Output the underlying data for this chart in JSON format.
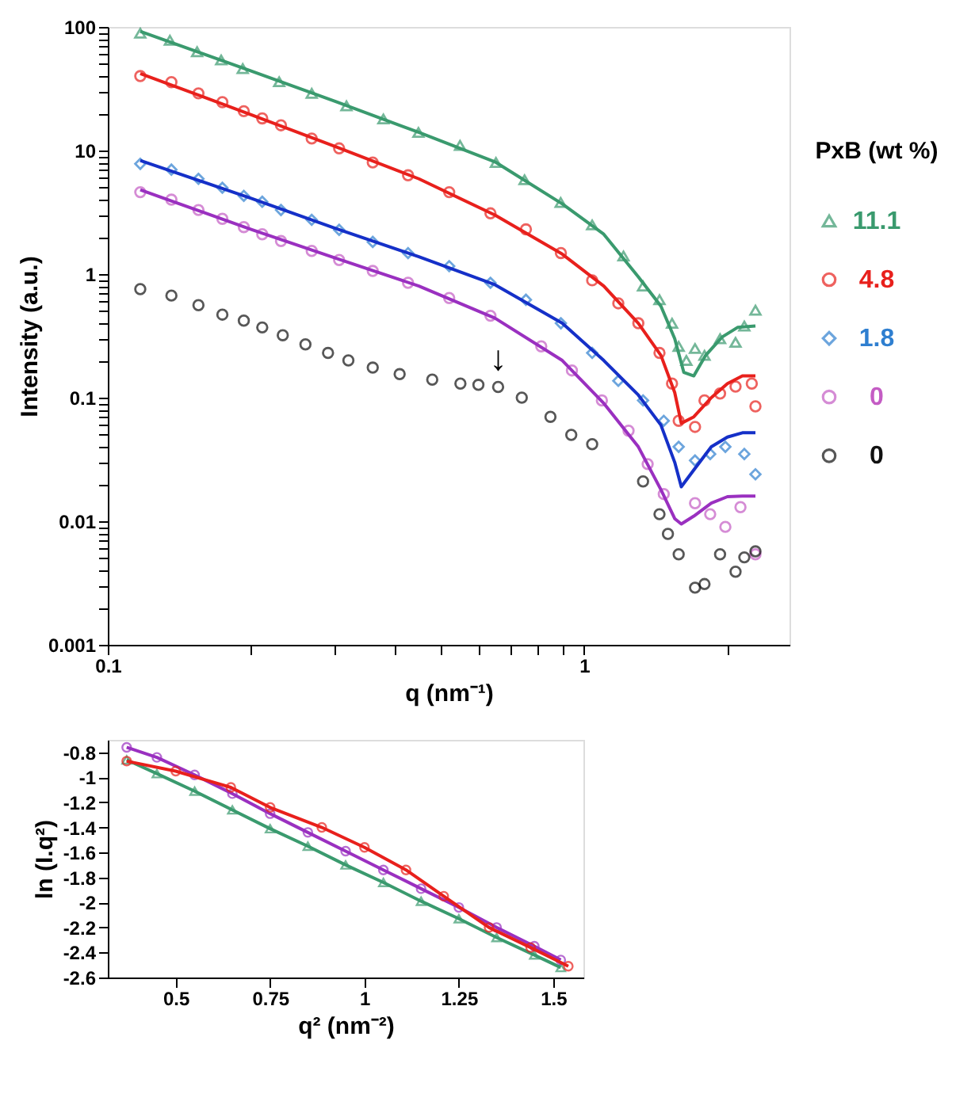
{
  "chart_data": [
    {
      "type": "scatter",
      "xlabel": "q (nm⁻¹)",
      "ylabel": "Intensity (a.u.)",
      "legend_title": "PxB (wt %)",
      "legend": "right",
      "log": "xy",
      "grid": false,
      "xlim": [
        0.1,
        2.7
      ],
      "xticks": [
        0.1,
        {
          "value": 0.2,
          "label": null
        },
        {
          "value": 0.3,
          "label": null
        },
        {
          "value": 0.4,
          "label": null
        },
        {
          "value": 0.5,
          "label": null
        },
        {
          "value": 0.6,
          "label": null
        },
        {
          "value": 0.7,
          "label": null
        },
        {
          "value": 0.8,
          "label": null
        },
        {
          "value": 0.9,
          "label": null
        },
        1,
        {
          "value": 2,
          "label": null
        }
      ],
      "ylim": [
        0.001,
        100
      ],
      "yticks": [
        0.001,
        {
          "value": 0.002,
          "label": null
        },
        {
          "value": 0.003,
          "label": null
        },
        {
          "value": 0.004,
          "label": null
        },
        {
          "value": 0.005,
          "label": null
        },
        {
          "value": 0.006,
          "label": null
        },
        {
          "value": 0.007,
          "label": null
        },
        {
          "value": 0.008,
          "label": null
        },
        {
          "value": 0.009,
          "label": null
        },
        0.01,
        {
          "value": 0.02,
          "label": null
        },
        {
          "value": 0.03,
          "label": null
        },
        {
          "value": 0.04,
          "label": null
        },
        {
          "value": 0.05,
          "label": null
        },
        {
          "value": 0.06,
          "label": null
        },
        {
          "value": 0.07,
          "label": null
        },
        {
          "value": 0.08,
          "label": null
        },
        {
          "value": 0.09,
          "label": null
        },
        0.1,
        {
          "value": 0.2,
          "label": null
        },
        {
          "value": 0.3,
          "label": null
        },
        {
          "value": 0.4,
          "label": null
        },
        {
          "value": 0.5,
          "label": null
        },
        {
          "value": 0.6,
          "label": null
        },
        {
          "value": 0.7,
          "label": null
        },
        {
          "value": 0.8,
          "label": null
        },
        {
          "value": 0.9,
          "label": null
        },
        1,
        {
          "value": 2,
          "label": null
        },
        {
          "value": 3,
          "label": null
        },
        {
          "value": 4,
          "label": null
        },
        {
          "value": 5,
          "label": null
        },
        {
          "value": 6,
          "label": null
        },
        {
          "value": 7,
          "label": null
        },
        {
          "value": 8,
          "label": null
        },
        {
          "value": 9,
          "label": null
        },
        10,
        {
          "value": 20,
          "label": null
        },
        {
          "value": 30,
          "label": null
        },
        {
          "value": 40,
          "label": null
        },
        {
          "value": 50,
          "label": null
        },
        {
          "value": 60,
          "label": null
        },
        {
          "value": 70,
          "label": null
        },
        {
          "value": 80,
          "label": null
        },
        {
          "value": 90,
          "label": null
        },
        100
      ],
      "annotations": [
        {
          "text": "↓",
          "x": 0.66,
          "y": 0.122
        }
      ],
      "series": [
        {
          "name": "11.1",
          "marker": "triangle",
          "color": "#3a9a6e",
          "x": [
            0.117,
            0.135,
            0.154,
            0.173,
            0.192,
            0.229,
            0.268,
            0.317,
            0.379,
            0.449,
            0.549,
            0.653,
            0.75,
            0.893,
            1.04,
            1.21,
            1.33,
            1.44,
            1.53,
            1.58,
            1.64,
            1.71,
            1.79,
            1.93,
            2.08,
            2.17,
            2.29
          ],
          "values": [
            89,
            78,
            63,
            54,
            46,
            36,
            29,
            23,
            18,
            14,
            11,
            8.0,
            5.8,
            3.8,
            2.5,
            1.4,
            0.8,
            0.62,
            0.4,
            0.26,
            0.2,
            0.25,
            0.22,
            0.3,
            0.28,
            0.38,
            0.51
          ]
        },
        {
          "type": "line",
          "marker": "none",
          "color": "#3a9a6e",
          "x": [
            0.117,
            0.2,
            0.3,
            0.45,
            0.65,
            0.9,
            1.1,
            1.3,
            1.45,
            1.55,
            1.62,
            1.7,
            1.8,
            1.95,
            2.1,
            2.29
          ],
          "values": [
            92,
            44,
            25,
            14,
            8.1,
            3.7,
            2.1,
            0.95,
            0.55,
            0.3,
            0.16,
            0.15,
            0.22,
            0.31,
            0.37,
            0.38
          ]
        },
        {
          "name": "4.8",
          "marker": "circle",
          "color": "#e8201c",
          "x": [
            0.117,
            0.136,
            0.155,
            0.174,
            0.193,
            0.211,
            0.231,
            0.268,
            0.306,
            0.36,
            0.427,
            0.521,
            0.636,
            0.755,
            0.894,
            1.04,
            1.18,
            1.3,
            1.44,
            1.53,
            1.58,
            1.71,
            1.79,
            1.93,
            2.08,
            2.25,
            2.29
          ],
          "values": [
            40,
            35.7,
            29,
            24.6,
            20.8,
            18.2,
            16,
            12.5,
            10.4,
            8.0,
            6.3,
            4.6,
            3.1,
            2.3,
            1.48,
            0.89,
            0.58,
            0.4,
            0.23,
            0.13,
            0.065,
            0.058,
            0.095,
            0.108,
            0.123,
            0.13,
            0.085
          ]
        },
        {
          "type": "line",
          "marker": "none",
          "color": "#e8201c",
          "x": [
            0.117,
            0.2,
            0.3,
            0.45,
            0.65,
            0.9,
            1.1,
            1.3,
            1.45,
            1.55,
            1.6,
            1.7,
            1.85,
            2.0,
            2.15,
            2.29
          ],
          "values": [
            42,
            19.5,
            10.8,
            5.9,
            3.0,
            1.45,
            0.8,
            0.4,
            0.22,
            0.11,
            0.062,
            0.07,
            0.1,
            0.13,
            0.15,
            0.15
          ]
        },
        {
          "name": "1.8",
          "marker": "diamond",
          "color": "#2f7fd0",
          "x": [
            0.117,
            0.136,
            0.155,
            0.174,
            0.193,
            0.211,
            0.231,
            0.268,
            0.306,
            0.36,
            0.427,
            0.521,
            0.636,
            0.755,
            0.894,
            1.04,
            1.18,
            1.33,
            1.47,
            1.58,
            1.71,
            1.84,
            1.98,
            2.17,
            2.29
          ],
          "values": [
            7.8,
            7.0,
            5.9,
            5.0,
            4.3,
            3.85,
            3.3,
            2.75,
            2.28,
            1.82,
            1.48,
            1.16,
            0.85,
            0.62,
            0.4,
            0.23,
            0.137,
            0.095,
            0.065,
            0.04,
            0.031,
            0.035,
            0.04,
            0.035,
            0.024
          ]
        },
        {
          "type": "line",
          "marker": "none",
          "color": "#1530c8",
          "x": [
            0.117,
            0.2,
            0.3,
            0.45,
            0.65,
            0.9,
            1.1,
            1.3,
            1.45,
            1.55,
            1.6,
            1.7,
            1.85,
            2.0,
            2.15,
            2.29
          ],
          "values": [
            8.3,
            4.1,
            2.35,
            1.38,
            0.82,
            0.4,
            0.2,
            0.105,
            0.06,
            0.03,
            0.019,
            0.026,
            0.04,
            0.048,
            0.052,
            0.052
          ]
        },
        {
          "name": "0",
          "marker": "circle",
          "color": "#c45cc4",
          "x": [
            0.117,
            0.136,
            0.155,
            0.174,
            0.193,
            0.211,
            0.231,
            0.268,
            0.306,
            0.36,
            0.427,
            0.521,
            0.636,
            0.813,
            0.943,
            1.09,
            1.24,
            1.36,
            1.47,
            1.71,
            1.84,
            1.98,
            2.13,
            2.29
          ],
          "values": [
            4.6,
            4.0,
            3.3,
            2.8,
            2.4,
            2.1,
            1.85,
            1.54,
            1.3,
            1.06,
            0.85,
            0.64,
            0.46,
            0.26,
            0.166,
            0.095,
            0.054,
            0.029,
            0.0166,
            0.014,
            0.0114,
            0.009,
            0.013,
            0.0054
          ]
        },
        {
          "type": "line",
          "marker": "none",
          "color": "#9a30c0",
          "x": [
            0.117,
            0.2,
            0.3,
            0.45,
            0.65,
            0.9,
            1.1,
            1.3,
            1.45,
            1.55,
            1.6,
            1.7,
            1.85,
            2.0,
            2.15,
            2.29
          ],
          "values": [
            4.8,
            2.3,
            1.35,
            0.8,
            0.44,
            0.2,
            0.09,
            0.04,
            0.018,
            0.0105,
            0.0095,
            0.011,
            0.014,
            0.0158,
            0.016,
            0.016
          ]
        },
        {
          "name": "0",
          "marker": "circle",
          "color": "#111111",
          "x": [
            0.117,
            0.136,
            0.155,
            0.174,
            0.193,
            0.211,
            0.233,
            0.26,
            0.29,
            0.32,
            0.36,
            0.41,
            0.48,
            0.55,
            0.6,
            0.66,
            0.74,
            0.85,
            0.94,
            1.04,
            1.33,
            1.44,
            1.5,
            1.58,
            1.71,
            1.79,
            1.93,
            2.08,
            2.17,
            2.29
          ],
          "values": [
            0.755,
            0.67,
            0.56,
            0.47,
            0.42,
            0.37,
            0.32,
            0.27,
            0.23,
            0.2,
            0.175,
            0.155,
            0.14,
            0.13,
            0.127,
            0.122,
            0.1,
            0.07,
            0.05,
            0.042,
            0.021,
            0.0114,
            0.0079,
            0.0054,
            0.0029,
            0.0031,
            0.0054,
            0.0039,
            0.0051,
            0.0057
          ]
        }
      ]
    },
    {
      "type": "line",
      "xlabel": "q² (nm⁻²)",
      "ylabel": "ln (I.q²)",
      "grid": false,
      "xlim": [
        0.32,
        1.58
      ],
      "xticks": [
        0.5,
        0.75,
        1,
        1.25,
        1.5
      ],
      "ylim": [
        -2.6,
        -0.7
      ],
      "yticks": [
        -0.8,
        -1,
        -1.2,
        -1.4,
        -1.6,
        -1.8,
        -2,
        -2.2,
        -2.4,
        -2.6
      ],
      "series": [
        {
          "marker": "triangle",
          "color": "#3a9a6e",
          "x": [
            0.37,
            0.45,
            0.55,
            0.65,
            0.75,
            0.85,
            0.95,
            1.05,
            1.15,
            1.25,
            1.35,
            1.45,
            1.52
          ],
          "values": [
            -0.86,
            -0.97,
            -1.11,
            -1.26,
            -1.41,
            -1.55,
            -1.7,
            -1.84,
            -1.99,
            -2.13,
            -2.28,
            -2.42,
            -2.52
          ]
        },
        {
          "marker": "circle",
          "color": "#9a30c0",
          "x": [
            0.37,
            0.45,
            0.55,
            0.65,
            0.75,
            0.85,
            0.95,
            1.05,
            1.15,
            1.25,
            1.35,
            1.45,
            1.52
          ],
          "values": [
            -0.76,
            -0.84,
            -0.98,
            -1.13,
            -1.29,
            -1.44,
            -1.59,
            -1.74,
            -1.89,
            -2.04,
            -2.2,
            -2.35,
            -2.46
          ]
        },
        {
          "marker": "circle",
          "color": "#e8201c",
          "x": [
            0.37,
            0.5,
            0.646,
            0.75,
            0.887,
            1.0,
            1.11,
            1.21,
            1.33,
            1.44,
            1.54
          ],
          "values": [
            -0.87,
            -0.95,
            -1.08,
            -1.24,
            -1.4,
            -1.56,
            -1.74,
            -1.95,
            -2.2,
            -2.36,
            -2.51
          ]
        }
      ]
    }
  ]
}
